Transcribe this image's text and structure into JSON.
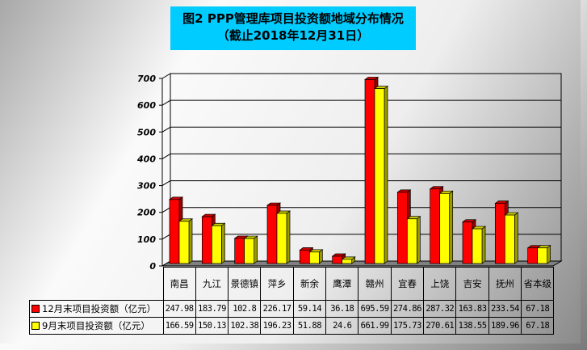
{
  "title_line1": "图2 PPP管理库项目投资额地域分布情况",
  "title_line2": "（截止2018年12月31日）",
  "chart_data": {
    "type": "bar",
    "categories": [
      "南昌",
      "九江",
      "景德镇",
      "萍乡",
      "新余",
      "鹰潭",
      "赣州",
      "宜春",
      "上饶",
      "吉安",
      "抚州",
      "省本级"
    ],
    "series": [
      {
        "name": "12月末项目投资额（亿元）",
        "color": "#ff0000",
        "values": [
          247.98,
          183.79,
          102.8,
          226.17,
          59.14,
          36.18,
          695.59,
          274.86,
          287.32,
          163.83,
          233.54,
          67.18
        ]
      },
      {
        "name": "9月末项目投资额（亿元）",
        "color": "#ffff00",
        "values": [
          166.59,
          150.13,
          102.38,
          196.23,
          51.88,
          24.6,
          661.99,
          175.73,
          270.61,
          138.55,
          189.96,
          67.18
        ]
      }
    ],
    "value_labels": [
      [
        "247.98",
        "183.79",
        "102.8",
        "226.17",
        "59.14",
        "36.18",
        "695.59",
        "274.86",
        "287.32",
        "163.83",
        "233.54",
        "67.18"
      ],
      [
        "166.59",
        "150.13",
        "102.38",
        "196.23",
        "51.88",
        "24.6",
        "661.99",
        "175.73",
        "270.61",
        "138.55",
        "189.96",
        "67.18"
      ]
    ],
    "yticks": [
      "0",
      "100",
      "200",
      "300",
      "400",
      "500",
      "600",
      "700"
    ],
    "ylim": [
      0,
      700
    ],
    "grid": true,
    "legend": "data-table",
    "style": "3d-clustered-column"
  }
}
